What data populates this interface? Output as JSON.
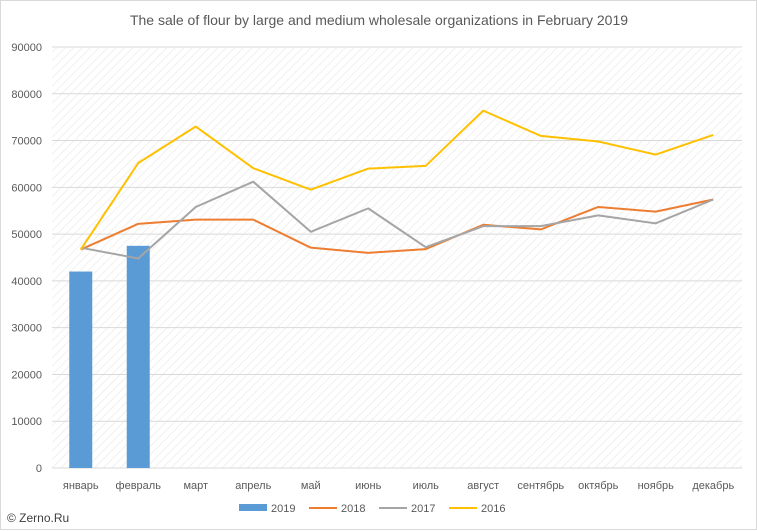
{
  "watermark": "© Zerno.Ru",
  "chart_data": {
    "type": "line",
    "title": "The sale of flour by large and medium wholesale organizations in February 2019",
    "categories": [
      "январь",
      "февраль",
      "март",
      "апрель",
      "май",
      "июнь",
      "июль",
      "август",
      "сентябрь",
      "октябрь",
      "ноябрь",
      "декабрь"
    ],
    "ylim": [
      0,
      90000
    ],
    "yticks": [
      0,
      10000,
      20000,
      30000,
      40000,
      50000,
      60000,
      70000,
      80000,
      90000
    ],
    "grid": true,
    "legend_position": "bottom",
    "series": [
      {
        "name": "2019",
        "kind": "bar",
        "color": "#5b9bd5",
        "values": [
          42000,
          47500,
          null,
          null,
          null,
          null,
          null,
          null,
          null,
          null,
          null,
          null
        ]
      },
      {
        "name": "2018",
        "kind": "line",
        "color": "#ed7d31",
        "values": [
          46700,
          52200,
          53100,
          53100,
          47100,
          46000,
          46800,
          52000,
          51000,
          55800,
          54800,
          57400
        ]
      },
      {
        "name": "2017",
        "kind": "line",
        "color": "#a5a5a5",
        "values": [
          47100,
          44800,
          55800,
          61200,
          50500,
          55500,
          47200,
          51700,
          51700,
          54000,
          52300,
          57400
        ]
      },
      {
        "name": "2016",
        "kind": "line",
        "color": "#ffc000",
        "values": [
          46700,
          65200,
          73000,
          64100,
          59500,
          64000,
          64600,
          76400,
          71000,
          69800,
          67000,
          71200
        ]
      }
    ]
  }
}
